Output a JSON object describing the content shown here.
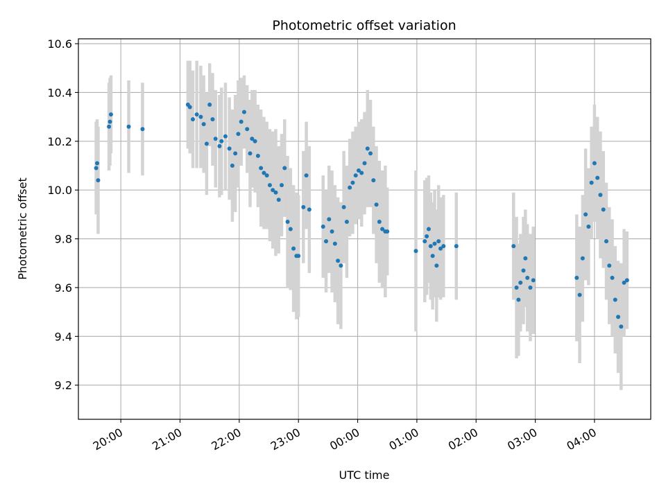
{
  "chart_data": {
    "type": "scatter",
    "title": "Photometric offset variation",
    "xlabel": "UTC time",
    "ylabel": "Photometric offset",
    "grid": true,
    "xlim": [
      "19:17",
      "04:57"
    ],
    "ylim": [
      9.06,
      10.62
    ],
    "x_ticks": [
      "20:00",
      "21:00",
      "22:00",
      "23:00",
      "00:00",
      "01:00",
      "02:00",
      "03:00",
      "04:00"
    ],
    "y_ticks": [
      "9.2",
      "9.4",
      "9.6",
      "9.8",
      "10.0",
      "10.2",
      "10.4",
      "10.6"
    ],
    "y_tick_values": [
      9.2,
      9.4,
      9.6,
      9.8,
      10.0,
      10.2,
      10.4,
      10.6
    ],
    "colors": {
      "points": "#1f77b4",
      "error_bars": "#d3d3d3",
      "grid": "#b0b0b0"
    },
    "series": [
      {
        "x": [
          "19:35",
          "19:36",
          "19:37",
          "19:48",
          "19:49",
          "19:50",
          "20:08",
          "20:22",
          "21:08",
          "21:10",
          "21:13",
          "21:17",
          "21:21",
          "21:24",
          "21:27",
          "21:30",
          "21:33",
          "21:36",
          "21:40",
          "21:42",
          "21:46",
          "21:50",
          "21:53",
          "21:56",
          "21:59",
          "22:02",
          "22:05",
          "22:08",
          "22:11",
          "22:13",
          "22:16",
          "22:19",
          "22:22",
          "22:25",
          "22:28",
          "22:31",
          "22:34",
          "22:37",
          "22:40",
          "22:43",
          "22:46",
          "22:49",
          "22:52",
          "22:55",
          "22:58",
          "23:00",
          "23:05",
          "23:08",
          "23:11",
          "23:25",
          "23:28",
          "23:31",
          "23:34",
          "23:37",
          "23:40",
          "23:43",
          "23:46",
          "23:49",
          "23:52",
          "23:55",
          "23:58",
          "00:01",
          "00:04",
          "00:07",
          "00:10",
          "00:13",
          "00:16",
          "00:19",
          "00:22",
          "00:25",
          "00:28",
          "00:30",
          "00:59",
          "01:08",
          "01:10",
          "01:12",
          "01:14",
          "01:16",
          "01:18",
          "01:20",
          "01:22",
          "01:24",
          "01:27",
          "01:40",
          "02:38",
          "02:41",
          "02:43",
          "02:45",
          "02:48",
          "02:50",
          "02:52",
          "02:55",
          "02:58",
          "03:42",
          "03:45",
          "03:48",
          "03:51",
          "03:54",
          "03:57",
          "04:00",
          "04:03",
          "04:06",
          "04:09",
          "04:12",
          "04:15",
          "04:18",
          "04:21",
          "04:24",
          "04:27",
          "04:30",
          "04:33"
        ],
        "y": [
          10.09,
          10.11,
          10.04,
          10.26,
          10.28,
          10.31,
          10.26,
          10.25,
          10.35,
          10.34,
          10.29,
          10.31,
          10.3,
          10.27,
          10.19,
          10.35,
          10.29,
          10.21,
          10.18,
          10.2,
          10.22,
          10.17,
          10.1,
          10.15,
          10.23,
          10.28,
          10.32,
          10.25,
          10.15,
          10.21,
          10.2,
          10.14,
          10.09,
          10.07,
          10.06,
          10.02,
          10.0,
          9.99,
          9.96,
          10.02,
          10.09,
          9.87,
          9.84,
          9.76,
          9.73,
          9.73,
          9.93,
          10.06,
          9.92,
          9.85,
          9.79,
          9.88,
          9.83,
          9.78,
          9.71,
          9.69,
          9.93,
          9.87,
          10.01,
          10.03,
          10.06,
          10.08,
          10.07,
          10.11,
          10.17,
          10.15,
          10.04,
          9.94,
          9.87,
          9.84,
          9.83,
          9.83,
          9.75,
          9.79,
          9.81,
          9.84,
          9.77,
          9.73,
          9.78,
          9.69,
          9.79,
          9.76,
          9.77,
          9.77,
          9.77,
          9.6,
          9.55,
          9.62,
          9.67,
          9.72,
          9.64,
          9.6,
          9.63,
          9.64,
          9.57,
          9.72,
          9.9,
          9.85,
          10.03,
          10.11,
          10.05,
          9.98,
          9.92,
          9.79,
          9.69,
          9.64,
          9.55,
          9.48,
          9.44,
          9.62,
          9.63
        ],
        "yerr": [
          0.19,
          0.18,
          0.22,
          0.18,
          0.18,
          0.16,
          0.19,
          0.19,
          0.18,
          0.19,
          0.2,
          0.22,
          0.21,
          0.2,
          0.21,
          0.17,
          0.19,
          0.2,
          0.21,
          0.22,
          0.22,
          0.21,
          0.23,
          0.24,
          0.22,
          0.18,
          0.15,
          0.18,
          0.22,
          0.2,
          0.21,
          0.21,
          0.24,
          0.23,
          0.22,
          0.23,
          0.24,
          0.26,
          0.22,
          0.21,
          0.2,
          0.27,
          0.25,
          0.26,
          0.26,
          0.25,
          0.23,
          0.22,
          0.26,
          0.21,
          0.21,
          0.22,
          0.25,
          0.24,
          0.26,
          0.26,
          0.23,
          0.23,
          0.2,
          0.21,
          0.2,
          0.2,
          0.22,
          0.21,
          0.24,
          0.22,
          0.22,
          0.24,
          0.25,
          0.24,
          0.27,
          0.18,
          0.33,
          0.25,
          0.24,
          0.22,
          0.22,
          0.22,
          0.22,
          0.23,
          0.23,
          0.21,
          0.21,
          0.22,
          0.22,
          0.29,
          0.23,
          0.2,
          0.22,
          0.2,
          0.22,
          0.22,
          0.22,
          0.26,
          0.28,
          0.26,
          0.27,
          0.24,
          0.23,
          0.24,
          0.25,
          0.26,
          0.24,
          0.24,
          0.24,
          0.24,
          0.22,
          0.23,
          0.26,
          0.22,
          0.2
        ]
      }
    ]
  }
}
